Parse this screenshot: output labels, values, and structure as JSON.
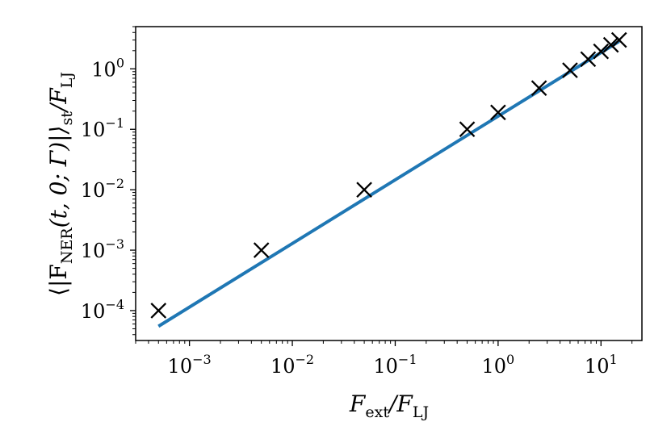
{
  "chart_data": {
    "type": "scatter",
    "xscale": "log",
    "yscale": "log",
    "xlim": [
      0.0003,
      25
    ],
    "ylim": [
      3.2e-05,
      5
    ],
    "grid": false,
    "xlabel": {
      "main": "F",
      "sub": "ext",
      "slash": "/F",
      "sub2": "LJ"
    },
    "ylabel": {
      "open": "⟨|F",
      "sub": "NER",
      "mid": "(t, 0; Γ)|⟩",
      "sub2": "st",
      "slash": "/F",
      "sub3": "LJ"
    },
    "xticks": [
      {
        "value": 0.001,
        "base": "10",
        "exp": "−3"
      },
      {
        "value": 0.01,
        "base": "10",
        "exp": "−2"
      },
      {
        "value": 0.1,
        "base": "10",
        "exp": "−1"
      },
      {
        "value": 1,
        "base": "10",
        "exp": "0"
      },
      {
        "value": 10,
        "base": "10",
        "exp": "1"
      }
    ],
    "yticks": [
      {
        "value": 0.0001,
        "base": "10",
        "exp": "−4"
      },
      {
        "value": 0.001,
        "base": "10",
        "exp": "−3"
      },
      {
        "value": 0.01,
        "base": "10",
        "exp": "−2"
      },
      {
        "value": 0.1,
        "base": "10",
        "exp": "−1"
      },
      {
        "value": 1,
        "base": "10",
        "exp": "0"
      }
    ],
    "series": [
      {
        "kind": "markers",
        "marker": "x",
        "color": "#000000",
        "x": [
          0.0005,
          0.005,
          0.05,
          0.5,
          1,
          2.5,
          5,
          7.5,
          10,
          12.5,
          15
        ],
        "y": [
          0.0001,
          0.001,
          0.01,
          0.1,
          0.19,
          0.48,
          0.95,
          1.45,
          1.95,
          2.5,
          3.0
        ]
      },
      {
        "kind": "line",
        "color": "#1f77b4",
        "x": [
          0.0005,
          15
        ],
        "y": [
          5.5e-05,
          2.85
        ]
      }
    ]
  }
}
